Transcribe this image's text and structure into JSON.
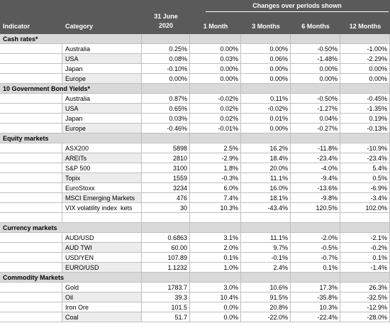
{
  "header": {
    "indicator": "Indicator",
    "category": "Category",
    "date": [
      "31 June",
      "2020"
    ],
    "periods_title": "Changes over periods shown",
    "periods": [
      "1 Month",
      "3 Months",
      "6 Months",
      "12 Months"
    ]
  },
  "sections": [
    {
      "title": "Cash rates*",
      "rows": [
        {
          "category": "Australia",
          "values": [
            "0.25%",
            "0.00%",
            "0.00%",
            "-0.50%",
            "-1.00%"
          ]
        },
        {
          "category": "USA",
          "values": [
            "0.08%",
            "0.03%",
            "0.06%",
            "-1.48%",
            "-2.29%"
          ]
        },
        {
          "category": "Japan",
          "values": [
            "-0.10%",
            "0.00%",
            "0.00%",
            "0.00%",
            "0.00%"
          ]
        },
        {
          "category": "Europe",
          "values": [
            "0.00%",
            "0.00%",
            "0.00%",
            "0.00%",
            "0.00%"
          ]
        }
      ]
    },
    {
      "title": "10 Government Bond Yields*",
      "rows": [
        {
          "category": "Australia",
          "values": [
            "0.87%",
            "-0.02%",
            "0.11%",
            "-0.50%",
            "-0.45%"
          ]
        },
        {
          "category": "USA",
          "values": [
            "0.65%",
            "0.02%",
            "-0.02%",
            "-1.27%",
            "-1.35%"
          ]
        },
        {
          "category": "Japan",
          "values": [
            "0.03%",
            "0.02%",
            "0.01%",
            "0.04%",
            "0.19%"
          ]
        },
        {
          "category": "Europe",
          "values": [
            "-0.46%",
            "-0.01%",
            "0.00%",
            "-0.27%",
            "-0.13%"
          ]
        }
      ]
    },
    {
      "title": "Equity markets",
      "rows": [
        {
          "category": "ASX200",
          "values": [
            "5898",
            "2.5%",
            "16.2%",
            "-11.8%",
            "-10.9%"
          ]
        },
        {
          "category": "AREITs",
          "values": [
            "2810",
            "-2.9%",
            "18.4%",
            "-23.4%",
            "-23.4%"
          ]
        },
        {
          "category": "S&P 500",
          "values": [
            "3100",
            "1.8%",
            "20.0%",
            "-4.0%",
            "5.4%"
          ]
        },
        {
          "category": "Topix",
          "values": [
            "1559",
            "-0.3%",
            "11.1%",
            "-9.4%",
            "0.5%"
          ]
        },
        {
          "category": "EuroStoxx",
          "values": [
            "3234",
            "6.0%",
            "16.0%",
            "-13.6%",
            "-6.9%"
          ]
        },
        {
          "category": "MSCI Emerging Markets",
          "values": [
            "476",
            "7.4%",
            "18.1%",
            "-9.8%",
            "-3.4%"
          ]
        },
        {
          "category": "VIX volatility index  kets",
          "values": [
            "30",
            "10.3%",
            "-43.4%",
            "120.5%",
            "102.0%"
          ]
        }
      ]
    },
    {
      "title": "Currency markets",
      "rows": [
        {
          "category": "AUD/USD",
          "values": [
            "0.6863",
            "3.1%",
            "11.1%",
            "-2.0%",
            "-2.1%"
          ]
        },
        {
          "category": "AUD TWI",
          "values": [
            "60.00",
            "2.0%",
            "9.7%",
            "-0.5%",
            "-0.2%"
          ]
        },
        {
          "category": "USD/YEN",
          "values": [
            "107.89",
            "0.1%",
            "-0.1%",
            "-0.7%",
            "0.1%"
          ]
        },
        {
          "category": "EURO/USD",
          "values": [
            "1.1232",
            "1.0%",
            "2.4%",
            "0.1%",
            "-1.4%"
          ]
        }
      ]
    },
    {
      "title": "Commodity Markets",
      "rows": [
        {
          "category": "Gold",
          "values": [
            "1783.7",
            "3.0%",
            "10.6%",
            "17.3%",
            "26.3%"
          ]
        },
        {
          "category": "Oil",
          "values": [
            "39.3",
            "10.4%",
            "91.5%",
            "-35.8%",
            "-32.5%"
          ]
        },
        {
          "category": "Iron Ore",
          "values": [
            "101.5",
            "0.0%",
            "20.8%",
            "10.3%",
            "-12.9%"
          ]
        },
        {
          "category": "Coal",
          "values": [
            "51.7",
            "0.0%",
            "-22.0%",
            "-22.4%",
            "-28.0%"
          ]
        }
      ]
    }
  ]
}
